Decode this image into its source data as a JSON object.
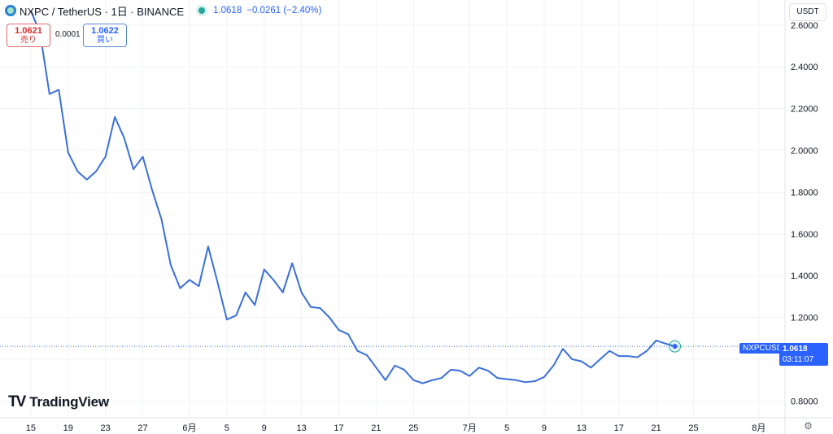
{
  "header": {
    "symbol": "NXPC / TetherUS · 1日 · BINANCE",
    "last": "1.0618",
    "change": "−0.0261 (−2.40%)",
    "currency_button": "USDT"
  },
  "trade": {
    "sell_price": "1.0621",
    "sell_label": "売り",
    "spread": "0.0001",
    "buy_price": "1.0622",
    "buy_label": "買い"
  },
  "price_tag": {
    "symbol": "NXPCUSDT",
    "price": "1.0618",
    "countdown": "03:11:07"
  },
  "logo": {
    "text": "TradingView",
    "mark": "TV"
  },
  "colors": {
    "line": "#3a6fd8",
    "accent": "#2962ff",
    "grid": "#f0f3fa",
    "up": "#26a69a",
    "down": "#d32f2f"
  },
  "icons": {
    "settings": "settings-icon",
    "coin": "coin-icon",
    "live": "live-dot"
  },
  "chart_data": {
    "type": "line",
    "ylim": [
      0.72,
      2.72
    ],
    "yticks": [
      0.8,
      1.0,
      1.2,
      1.4,
      1.6,
      1.8,
      2.0,
      2.2,
      2.4,
      2.6
    ],
    "ytick_labels": [
      "0.8000",
      "1.0000",
      "1.2000",
      "1.4000",
      "1.6000",
      "1.8000",
      "2.0000",
      "2.2000",
      "2.4000",
      "2.6000"
    ],
    "xticks": [
      {
        "d": 0,
        "label": "15"
      },
      {
        "d": 4,
        "label": "19"
      },
      {
        "d": 8,
        "label": "23"
      },
      {
        "d": 12,
        "label": "27"
      },
      {
        "d": 17,
        "label": "6月"
      },
      {
        "d": 21,
        "label": "5"
      },
      {
        "d": 25,
        "label": "9"
      },
      {
        "d": 29,
        "label": "13"
      },
      {
        "d": 33,
        "label": "17"
      },
      {
        "d": 37,
        "label": "21"
      },
      {
        "d": 41,
        "label": "25"
      },
      {
        "d": 47,
        "label": "7月"
      },
      {
        "d": 51,
        "label": "5"
      },
      {
        "d": 55,
        "label": "9"
      },
      {
        "d": 59,
        "label": "13"
      },
      {
        "d": 63,
        "label": "17"
      },
      {
        "d": 67,
        "label": "21"
      },
      {
        "d": 71,
        "label": "25"
      },
      {
        "d": 78,
        "label": "8月"
      }
    ],
    "xlim_days": [
      -3.3,
      80.8
    ],
    "series": [
      {
        "values": [
          2.67,
          2.56,
          2.27,
          2.29,
          1.99,
          1.9,
          1.86,
          1.9,
          1.97,
          2.16,
          2.06,
          1.91,
          1.97,
          1.81,
          1.67,
          1.45,
          1.34,
          1.38,
          1.35,
          1.54,
          1.37,
          1.19,
          1.21,
          1.32,
          1.26,
          1.43,
          1.38,
          1.32,
          1.46,
          1.32,
          1.25,
          1.245,
          1.2,
          1.14,
          1.12,
          1.04,
          1.02,
          0.96,
          0.9,
          0.97,
          0.95,
          0.9,
          0.885,
          0.9,
          0.91,
          0.95,
          0.945,
          0.92,
          0.96,
          0.945,
          0.91,
          0.905,
          0.9,
          0.89,
          0.895,
          0.915,
          0.97,
          1.05,
          1.0,
          0.99,
          0.96,
          1.0,
          1.04,
          1.015,
          1.015,
          1.01,
          1.04,
          1.09,
          1.075,
          1.0618
        ]
      }
    ],
    "last_value": 1.0618
  }
}
